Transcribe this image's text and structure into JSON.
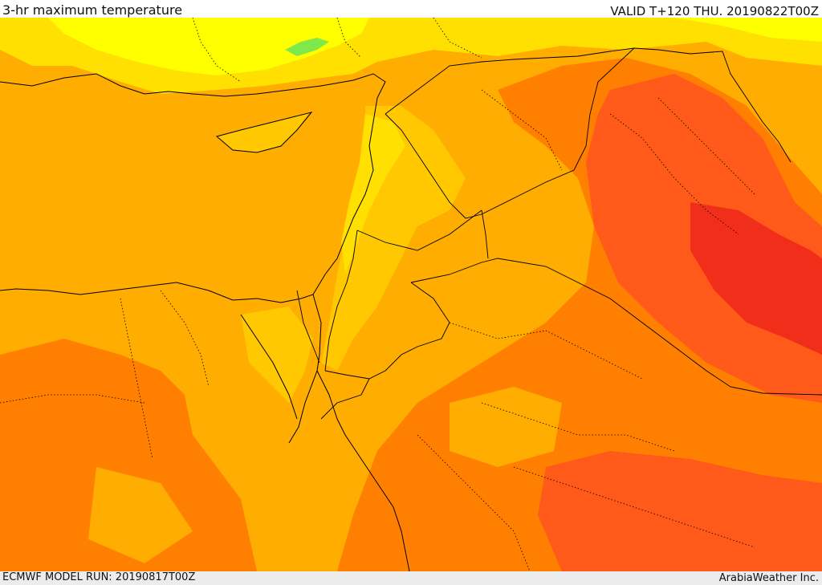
{
  "header": {
    "title": "3-hr maximum temperature",
    "valid": "VALID T+120 THU. 20190822T00Z"
  },
  "footer": {
    "model_run": "ECMWF MODEL RUN: 20190817T00Z",
    "credit": "ArabiaWeather Inc."
  },
  "map": {
    "colors": {
      "yellow": "#ffff00",
      "light_yellow": "#ffe000",
      "gold": "#ffc800",
      "orange": "#ffad00",
      "dark_orange": "#ff8000",
      "red_orange": "#ff5a1a",
      "red": "#f02e1a",
      "green": "#7fe84a",
      "border": "#000000"
    }
  }
}
